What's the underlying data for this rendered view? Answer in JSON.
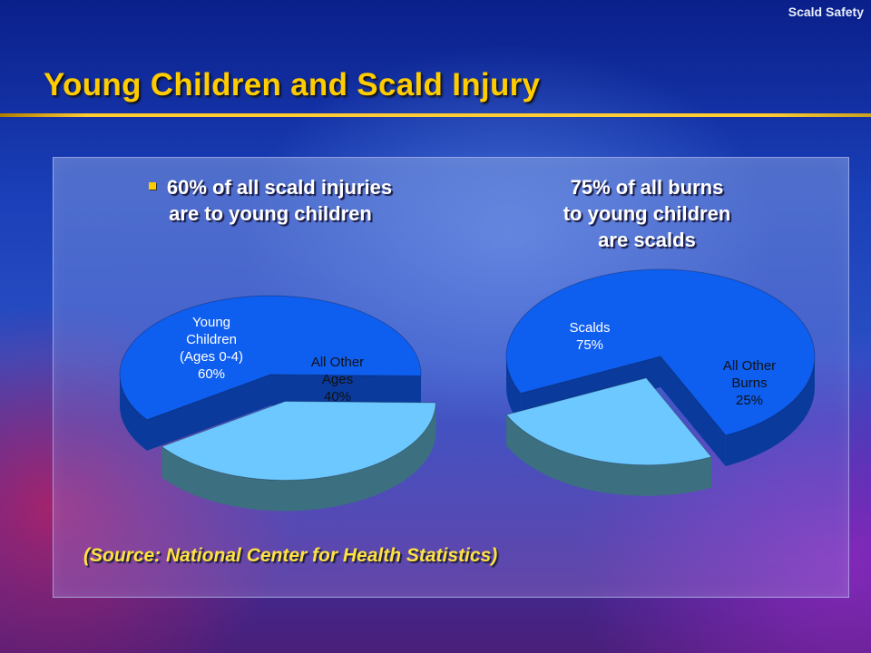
{
  "header": {
    "tag": "Scald Safety"
  },
  "slide": {
    "title": "Young Children and Scald Injury"
  },
  "left_heading": {
    "line1": "60% of all scald injuries",
    "line2": "are to young children"
  },
  "right_heading": {
    "line1": "75% of all burns",
    "line2": "to young children",
    "line3": "are scalds"
  },
  "source": {
    "text": "(Source: National Center for Health Statistics)"
  },
  "colors": {
    "main_slice": "#0e5ef0",
    "main_side": "#0a3a9c",
    "exploded_slice": "#6cc8ff",
    "exploded_side": "#3c7080",
    "title": "#ffcc00"
  },
  "chart_data": [
    {
      "type": "pie",
      "title": "60% of all scald injuries are to young children",
      "slices": [
        {
          "label_lines": [
            "Young",
            "Children",
            "(Ages 0-4)",
            "60%"
          ],
          "value": 60,
          "exploded": false
        },
        {
          "label_lines": [
            "All Other",
            "Ages",
            "40%"
          ],
          "value": 40,
          "exploded": true
        }
      ]
    },
    {
      "type": "pie",
      "title": "75% of all burns to young children are scalds",
      "slices": [
        {
          "label_lines": [
            "Scalds",
            "75%"
          ],
          "value": 75,
          "exploded": false
        },
        {
          "label_lines": [
            "All Other",
            "Burns",
            "25%"
          ],
          "value": 25,
          "exploded": true
        }
      ]
    }
  ]
}
